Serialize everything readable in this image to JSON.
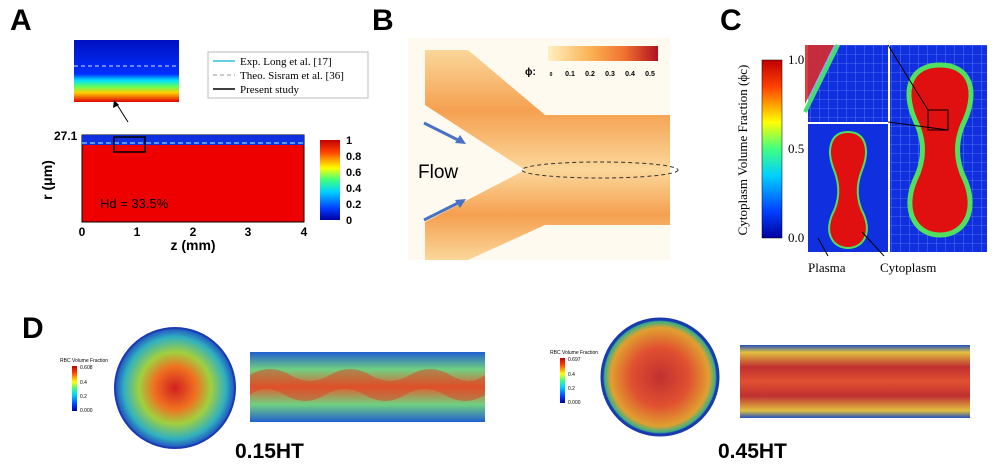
{
  "panels": {
    "A": {
      "label": "A",
      "y_axis_label": "r (μm)",
      "y_tick": "27.1",
      "x_axis_label": "z (mm)",
      "x_ticks": [
        "0",
        "1",
        "2",
        "3",
        "4"
      ],
      "annotation": "Hd = 33.5%",
      "legend": [
        "Exp. Long et al. [17]",
        "Theo. Sisram et al. [36]",
        "Present study"
      ],
      "colorbar_ticks": [
        "1",
        "0.8",
        "0.6",
        "0.4",
        "0.2",
        "0"
      ]
    },
    "B": {
      "label": "B",
      "colorbar_title": "ϕ:",
      "colorbar_ticks": [
        "0",
        "0.1",
        "0.2",
        "0.3",
        "0.4",
        "0.5"
      ],
      "annotation": "Flow"
    },
    "C": {
      "label": "C",
      "colorbar_title": "Cytoplasm Volume Fraction (ϕc)",
      "colorbar_ticks": [
        "1.0",
        "0.5",
        "0.0"
      ],
      "labels": [
        "Plasma",
        "Cytoplasm"
      ]
    },
    "D": {
      "label": "D",
      "cases": [
        {
          "caption": "0.15HT",
          "colorbar_title": "RBC Volume Fraction",
          "colorbar_ticks": [
            "0.608",
            "0.4",
            "0.2",
            "0.000"
          ]
        },
        {
          "caption": "0.45HT",
          "colorbar_title": "RBC Volume Fraction",
          "colorbar_ticks": [
            "0.697",
            "0.4",
            "0.2",
            "0.000"
          ]
        }
      ]
    }
  }
}
